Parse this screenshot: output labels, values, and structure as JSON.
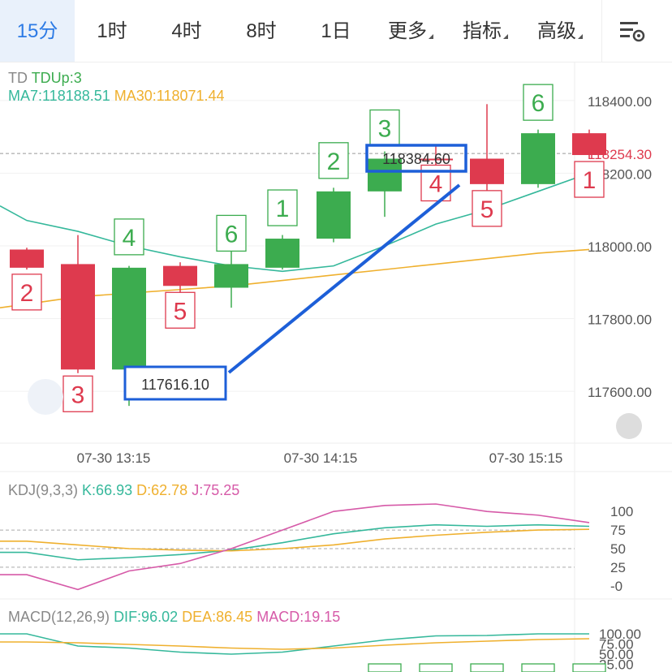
{
  "tabs": [
    {
      "label": "15分",
      "active": true
    },
    {
      "label": "1时"
    },
    {
      "label": "4时"
    },
    {
      "label": "8时"
    },
    {
      "label": "1日"
    },
    {
      "label": "更多",
      "dropdown": true
    },
    {
      "label": "指标",
      "dropdown": true
    },
    {
      "label": "高级",
      "dropdown": true
    }
  ],
  "settings_icon": "chart-settings-icon",
  "main_indicators": {
    "td_label": "TD",
    "td_name": "TDUp:3",
    "ma7": "MA7:118188.51",
    "ma30": "MA30:118071.44"
  },
  "kdj_header": {
    "name": "KDJ(9,3,3)",
    "k": "K:66.93",
    "d": "D:62.78",
    "j": "J:75.25"
  },
  "macd_header": {
    "name": "MACD(12,26,9)",
    "dif": "DIF:96.02",
    "dea": "DEA:86.45",
    "macd": "MACD:19.15"
  },
  "annotations": {
    "low_box": "117616.10",
    "high_box": "118384.60"
  },
  "current_price": "118254.30",
  "colors": {
    "up": "#3cac4f",
    "down": "#de3a4e",
    "ma7": "#35b89b",
    "ma30": "#efb02e",
    "kdj_j": "#d65aa8",
    "accent": "#2d7be5",
    "annotation": "#1d5fd8"
  },
  "chart_data": [
    {
      "type": "candlestick",
      "ylim": [
        117520,
        118480
      ],
      "y_ticks": [
        "118400.00",
        "118200.00",
        "118000.00",
        "117800.00",
        "117600.00"
      ],
      "x_ticks": [
        "07-30 13:15",
        "07-30 14:15",
        "07-30 15:15"
      ],
      "candles": [
        {
          "o": 117990,
          "c": 117940,
          "h": 117995,
          "l": 117935,
          "dir": "down",
          "td": "2"
        },
        {
          "o": 117950,
          "c": 117660,
          "h": 118030,
          "l": 117650,
          "dir": "down",
          "td": "3"
        },
        {
          "o": 117660,
          "c": 117940,
          "h": 117945,
          "l": 117560,
          "dir": "up",
          "td": "4"
        },
        {
          "o": 117945,
          "c": 117890,
          "h": 117955,
          "l": 117860,
          "dir": "down",
          "td": "5"
        },
        {
          "o": 117885,
          "c": 117950,
          "h": 117995,
          "l": 117830,
          "dir": "up",
          "td": "6"
        },
        {
          "o": 117940,
          "c": 118020,
          "h": 118030,
          "l": 117935,
          "dir": "up",
          "td": "1"
        },
        {
          "o": 118020,
          "c": 118150,
          "h": 118160,
          "l": 118010,
          "dir": "up",
          "td": "2"
        },
        {
          "o": 118150,
          "c": 118240,
          "h": 118260,
          "l": 118080,
          "dir": "up",
          "td": "3"
        },
        {
          "o": 118240,
          "c": 118240,
          "h": 118280,
          "l": 118200,
          "dir": "doji",
          "td": "4"
        },
        {
          "o": 118240,
          "c": 118170,
          "h": 118390,
          "l": 118150,
          "dir": "down",
          "td": "5"
        },
        {
          "o": 118170,
          "c": 118310,
          "h": 118320,
          "l": 118160,
          "dir": "up",
          "td": "6"
        },
        {
          "o": 118310,
          "c": 118250,
          "h": 118320,
          "l": 118240,
          "dir": "down",
          "td": "1"
        }
      ],
      "ma7": [
        118070,
        118040,
        118000,
        117970,
        117945,
        117930,
        117945,
        118000,
        118060,
        118100,
        118150,
        118200
      ],
      "ma30": [
        117840,
        117860,
        117870,
        117880,
        117890,
        117905,
        117920,
        117935,
        117950,
        117965,
        117980,
        117990
      ]
    },
    {
      "type": "line",
      "name": "KDJ",
      "y_ticks": [
        "100",
        "75",
        "50",
        "25",
        "-0"
      ],
      "ylim": [
        -10,
        110
      ],
      "series": [
        {
          "name": "K",
          "values": [
            45,
            35,
            38,
            42,
            48,
            58,
            70,
            78,
            82,
            80,
            82,
            80
          ]
        },
        {
          "name": "D",
          "values": [
            60,
            55,
            50,
            48,
            47,
            50,
            55,
            63,
            68,
            72,
            75,
            76
          ]
        },
        {
          "name": "J",
          "values": [
            15,
            -5,
            20,
            30,
            50,
            75,
            100,
            108,
            110,
            100,
            95,
            85
          ]
        }
      ]
    },
    {
      "type": "line",
      "name": "MACD",
      "y_ticks": [
        "100.00",
        "75.00",
        "50.00",
        "25.00"
      ],
      "ylim": [
        0,
        120
      ],
      "series": [
        {
          "name": "DIF",
          "values": [
            100,
            70,
            65,
            55,
            50,
            55,
            70,
            85,
            95,
            96,
            100,
            100
          ]
        },
        {
          "name": "DEA",
          "values": [
            80,
            78,
            74,
            70,
            65,
            62,
            65,
            72,
            78,
            82,
            86,
            88
          ]
        }
      ]
    }
  ]
}
